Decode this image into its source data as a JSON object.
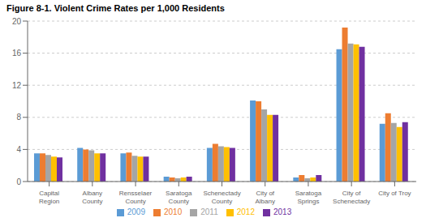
{
  "chart_data": {
    "type": "bar",
    "title": "Figure 8-1. Violent Crime Rates per 1,000 Residents",
    "categories": [
      "Capital\nRegion",
      "Albany\nCounty",
      "Rensselaer\nCounty",
      "Saratoga\nCounty",
      "Schenectady\nCounty",
      "City of\nAlbany",
      "Saratoga\nSprings",
      "City of\nSchenectady",
      "City of Troy"
    ],
    "series": [
      {
        "name": "2009",
        "color": "#5B9BD5",
        "values": [
          3.5,
          4.2,
          3.5,
          0.6,
          4.2,
          10.1,
          0.5,
          16.5,
          7.2
        ]
      },
      {
        "name": "2010",
        "color": "#ED7D31",
        "values": [
          3.5,
          4.0,
          3.6,
          0.5,
          4.7,
          10.0,
          0.8,
          19.2,
          8.5
        ]
      },
      {
        "name": "2011",
        "color": "#A5A5A5",
        "values": [
          3.3,
          3.9,
          3.2,
          0.4,
          4.4,
          9.0,
          0.4,
          17.2,
          7.3
        ]
      },
      {
        "name": "2012",
        "color": "#FFC000",
        "values": [
          3.1,
          3.5,
          3.1,
          0.5,
          4.3,
          8.3,
          0.5,
          17.1,
          6.8
        ]
      },
      {
        "name": "2013",
        "color": "#7030A0",
        "values": [
          3.0,
          3.5,
          3.1,
          0.6,
          4.2,
          8.3,
          0.8,
          16.8,
          7.4
        ]
      }
    ],
    "ylim": [
      0,
      20
    ],
    "yticks": [
      0,
      4,
      8,
      12,
      16,
      20
    ],
    "grid": true,
    "legend": "bottom"
  }
}
